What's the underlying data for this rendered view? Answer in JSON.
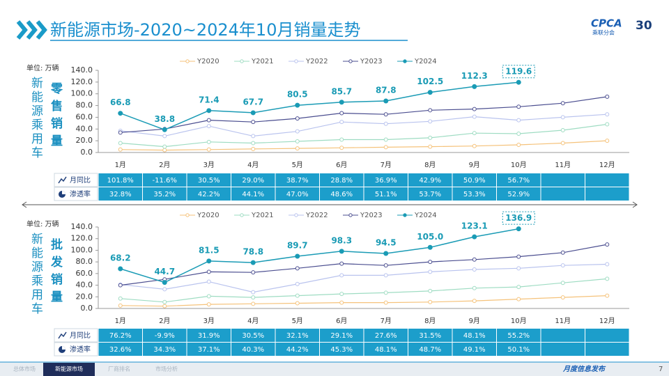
{
  "header": {
    "title": "新能源市场-2020~2024年10月销量走势",
    "logo_text": "CPCA",
    "logo_subtext": "乘联分会",
    "anniversary": "30"
  },
  "chart_data": [
    {
      "type": "line",
      "unit_label": "单位: 万辆",
      "side_label": "新能源乘用车",
      "metric_label": "零售销量",
      "categories": [
        "1月",
        "2月",
        "3月",
        "4月",
        "5月",
        "6月",
        "7月",
        "8月",
        "9月",
        "10月",
        "11月",
        "12月"
      ],
      "ylim": [
        0,
        140
      ],
      "yticks": [
        {
          "value": 0,
          "label": "0.0"
        },
        {
          "value": 20,
          "label": "20.0"
        },
        {
          "value": 40,
          "label": "40.0"
        },
        {
          "value": 60,
          "label": "60.0"
        },
        {
          "value": 80,
          "label": "80.0"
        },
        {
          "value": 100,
          "label": "100.0"
        },
        {
          "value": 120,
          "label": "120.0"
        },
        {
          "value": 140,
          "label": "140.0"
        }
      ],
      "grid": false,
      "legend": "top",
      "series": [
        {
          "name": "Y2020",
          "color": "#f5c27a",
          "values": [
            5,
            4,
            5,
            6,
            7,
            8,
            9,
            10,
            11,
            13,
            16,
            20
          ]
        },
        {
          "name": "Y2021",
          "color": "#9edcc2",
          "values": [
            16,
            10,
            18,
            16,
            19,
            22,
            22,
            25,
            33,
            32,
            38,
            48
          ]
        },
        {
          "name": "Y2022",
          "color": "#b9c3ee",
          "values": [
            37,
            28,
            45,
            28,
            36,
            52,
            49,
            53,
            61,
            55,
            60,
            65
          ]
        },
        {
          "name": "Y2023",
          "color": "#4a4d8f",
          "values": [
            34,
            40,
            55,
            52,
            58,
            67,
            65,
            72,
            74,
            78,
            84,
            95
          ]
        },
        {
          "name": "Y2024",
          "color": "#1a9bb5",
          "values": [
            66.8,
            38.8,
            71.4,
            67.7,
            80.5,
            85.7,
            87.8,
            102.5,
            112.3,
            119.6,
            null,
            null
          ],
          "value_labels": [
            "66.8",
            "38.8",
            "71.4",
            "67.7",
            "80.5",
            "85.7",
            "87.8",
            "102.5",
            "112.3",
            "119.6",
            null,
            null
          ]
        }
      ]
    },
    {
      "type": "line",
      "unit_label": "单位: 万辆",
      "side_label": "新能源乘用车",
      "metric_label": "批发销量",
      "categories": [
        "1月",
        "2月",
        "3月",
        "4月",
        "5月",
        "6月",
        "7月",
        "8月",
        "9月",
        "10月",
        "11月",
        "12月"
      ],
      "ylim": [
        0,
        140
      ],
      "yticks": [
        {
          "value": 0,
          "label": "0.0"
        },
        {
          "value": 20,
          "label": "20.0"
        },
        {
          "value": 40,
          "label": "40.0"
        },
        {
          "value": 60,
          "label": "60.0"
        },
        {
          "value": 80,
          "label": "80.0"
        },
        {
          "value": 100,
          "label": "100.0"
        },
        {
          "value": 120,
          "label": "120.0"
        },
        {
          "value": 140,
          "label": "140.0"
        }
      ],
      "grid": false,
      "legend": "top",
      "series": [
        {
          "name": "Y2020",
          "color": "#f5c27a",
          "values": [
            5,
            4,
            7,
            8,
            9,
            10,
            10,
            11,
            13,
            16,
            19,
            22
          ]
        },
        {
          "name": "Y2021",
          "color": "#9edcc2",
          "values": [
            17,
            11,
            21,
            19,
            22,
            25,
            27,
            30,
            35,
            37,
            44,
            51
          ]
        },
        {
          "name": "Y2022",
          "color": "#b9c3ee",
          "values": [
            41,
            33,
            46,
            28,
            42,
            57,
            57,
            63,
            67,
            69,
            74,
            76
          ]
        },
        {
          "name": "Y2023",
          "color": "#4a4d8f",
          "values": [
            40,
            50,
            63,
            62,
            69,
            77,
            74,
            80,
            84,
            89,
            96,
            110
          ]
        },
        {
          "name": "Y2024",
          "color": "#1a9bb5",
          "values": [
            68.2,
            44.7,
            81.5,
            78.8,
            89.7,
            98.3,
            94.5,
            105.0,
            123.1,
            136.9,
            null,
            null
          ],
          "value_labels": [
            "68.2",
            "44.7",
            "81.5",
            "78.8",
            "89.7",
            "98.3",
            "94.5",
            "105.0",
            "123.1",
            "136.9",
            null,
            null
          ]
        }
      ]
    }
  ],
  "tables": [
    {
      "rows": [
        {
          "label": "月同比",
          "values": [
            "101.8%",
            "-11.6%",
            "30.5%",
            "29.0%",
            "38.7%",
            "28.8%",
            "36.9%",
            "42.9%",
            "50.9%",
            "56.7%",
            null,
            null
          ]
        },
        {
          "label": "渗透率",
          "values": [
            "32.8%",
            "35.2%",
            "42.2%",
            "44.1%",
            "47.0%",
            "48.6%",
            "51.1%",
            "53.7%",
            "53.3%",
            "52.9%",
            null,
            null
          ]
        }
      ]
    },
    {
      "rows": [
        {
          "label": "月同比",
          "values": [
            "76.2%",
            "-9.9%",
            "31.9%",
            "30.5%",
            "32.1%",
            "29.1%",
            "27.6%",
            "31.5%",
            "48.1%",
            "55.2%",
            null,
            null
          ]
        },
        {
          "label": "渗透率",
          "values": [
            "32.6%",
            "34.3%",
            "37.1%",
            "40.3%",
            "44.2%",
            "45.3%",
            "48.1%",
            "48.7%",
            "49.1%",
            "50.1%",
            null,
            null
          ]
        }
      ]
    }
  ],
  "footer": {
    "tabs": [
      "总体市场",
      "新能源市场",
      "厂商排名",
      "市场分析"
    ],
    "active_tab": 1,
    "tagline": "月度信息发布",
    "page": "7"
  }
}
